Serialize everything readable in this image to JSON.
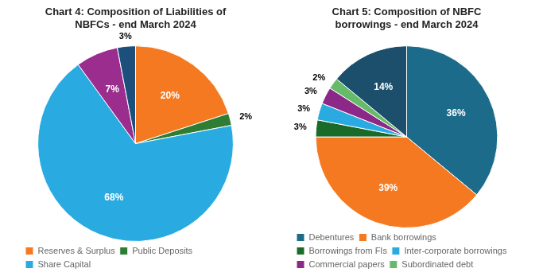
{
  "chart_data": [
    {
      "type": "pie",
      "title": "Chart 4: Composition of Liabilities of\nNBFCs - end March 2024",
      "categories": [
        "Reserves & Surplus",
        "Public Deposits",
        "Share Capital",
        null,
        null
      ],
      "values": [
        20,
        2,
        68,
        7,
        3
      ],
      "value_labels": [
        "20%",
        "2%",
        "68%",
        "7%",
        "3%"
      ],
      "colors": [
        "#F47920",
        "#2E7D32",
        "#29ABE2",
        "#9B2D8E",
        "#1C4F7C"
      ],
      "data_labels": true,
      "legend": "bottom"
    },
    {
      "type": "pie",
      "title": "Chart 5: Composition of NBFC\nborrowings - end March 2024",
      "categories": [
        "Debentures",
        "Bank borrowings",
        "Borrowings from FIs",
        "Inter-corporate borrowings",
        "Commercial papers",
        "Subordinated debt",
        null
      ],
      "values": [
        36,
        39,
        3,
        3,
        3,
        2,
        14
      ],
      "value_labels": [
        "36%",
        "39%",
        "3%",
        "3%",
        "3%",
        "2%",
        "14%"
      ],
      "colors": [
        "#1C6B8A",
        "#F47920",
        "#1A6B2A",
        "#29ABE2",
        "#8B2888",
        "#66BB6A",
        "#1C4F6C"
      ],
      "data_labels": true,
      "legend": "bottom"
    }
  ]
}
